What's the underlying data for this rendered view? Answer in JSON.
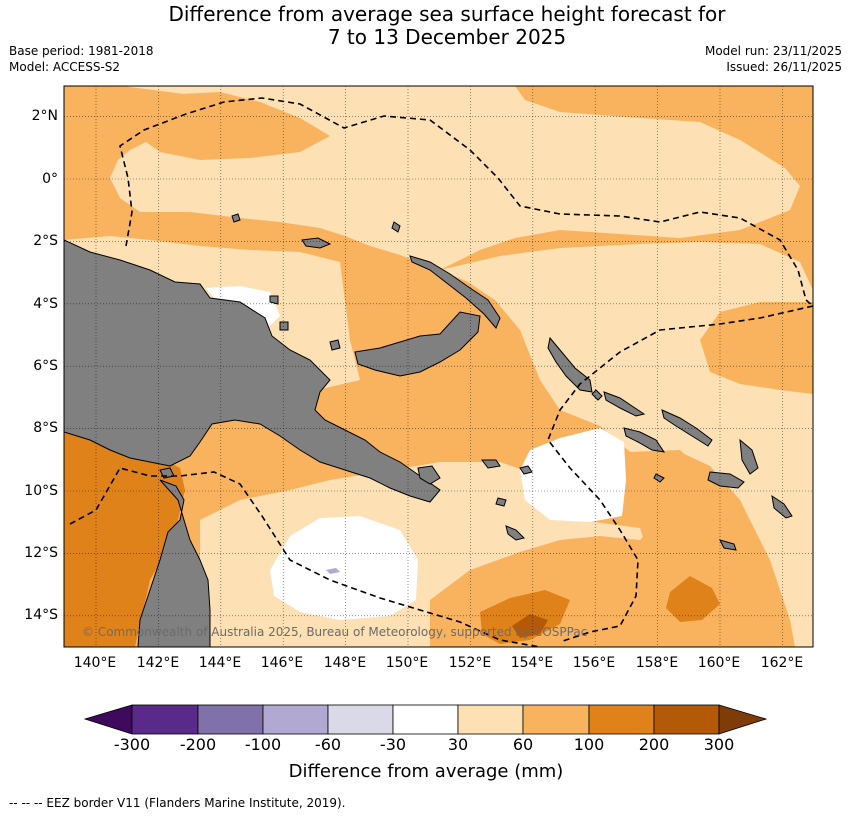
{
  "header": {
    "title_line1": "Difference from average sea surface height forecast for",
    "title_line2": "7 to 13 December 2025",
    "base_period": "Base period: 1981-2018",
    "model": "Model: ACCESS-S2",
    "model_run": "Model run: 23/11/2025",
    "issued": "Issued: 26/11/2025"
  },
  "axes": {
    "latitudes": [
      {
        "label": "2°N",
        "value": 2
      },
      {
        "label": "0°",
        "value": 0
      },
      {
        "label": "2°S",
        "value": -2
      },
      {
        "label": "4°S",
        "value": -4
      },
      {
        "label": "6°S",
        "value": -6
      },
      {
        "label": "8°S",
        "value": -8
      },
      {
        "label": "10°S",
        "value": -10
      },
      {
        "label": "12°S",
        "value": -12
      },
      {
        "label": "14°S",
        "value": -14
      }
    ],
    "longitudes": [
      {
        "label": "140°E",
        "value": 140
      },
      {
        "label": "142°E",
        "value": 142
      },
      {
        "label": "144°E",
        "value": 144
      },
      {
        "label": "146°E",
        "value": 146
      },
      {
        "label": "148°E",
        "value": 148
      },
      {
        "label": "150°E",
        "value": 150
      },
      {
        "label": "152°E",
        "value": 152
      },
      {
        "label": "154°E",
        "value": 154
      },
      {
        "label": "156°E",
        "value": 156
      },
      {
        "label": "158°E",
        "value": 158
      },
      {
        "label": "160°E",
        "value": 160
      },
      {
        "label": "162°E",
        "value": 162
      }
    ],
    "lon_range": [
      139,
      163
    ],
    "lat_range": [
      -15,
      3
    ]
  },
  "copyright": "© Commonwealth of Australia 2025, Bureau of Meteorology, supported by COSPPac",
  "colorbar": {
    "label": "Difference from average (mm)",
    "ticks": [
      "-300",
      "-200",
      "-100",
      "-60",
      "-30",
      "30",
      "60",
      "100",
      "200",
      "300"
    ],
    "colors": [
      "#3f0a5e",
      "#5a2a8a",
      "#8171ab",
      "#b1a9d1",
      "#d9d9e8",
      "#ffffff",
      "#fde0b4",
      "#f9b35f",
      "#e0821a",
      "#b35907",
      "#7f3b08"
    ]
  },
  "colors": {
    "land": "#808080",
    "band_30_60": "#fde0b4",
    "band_60_100": "#f9b35f",
    "band_100_200": "#e0821a",
    "band_200_300": "#b35907",
    "ocean_neutral": "#ffffff"
  },
  "footnote": "-- -- -- EEZ border V11 (Flanders Marine Institute, 2019)."
}
